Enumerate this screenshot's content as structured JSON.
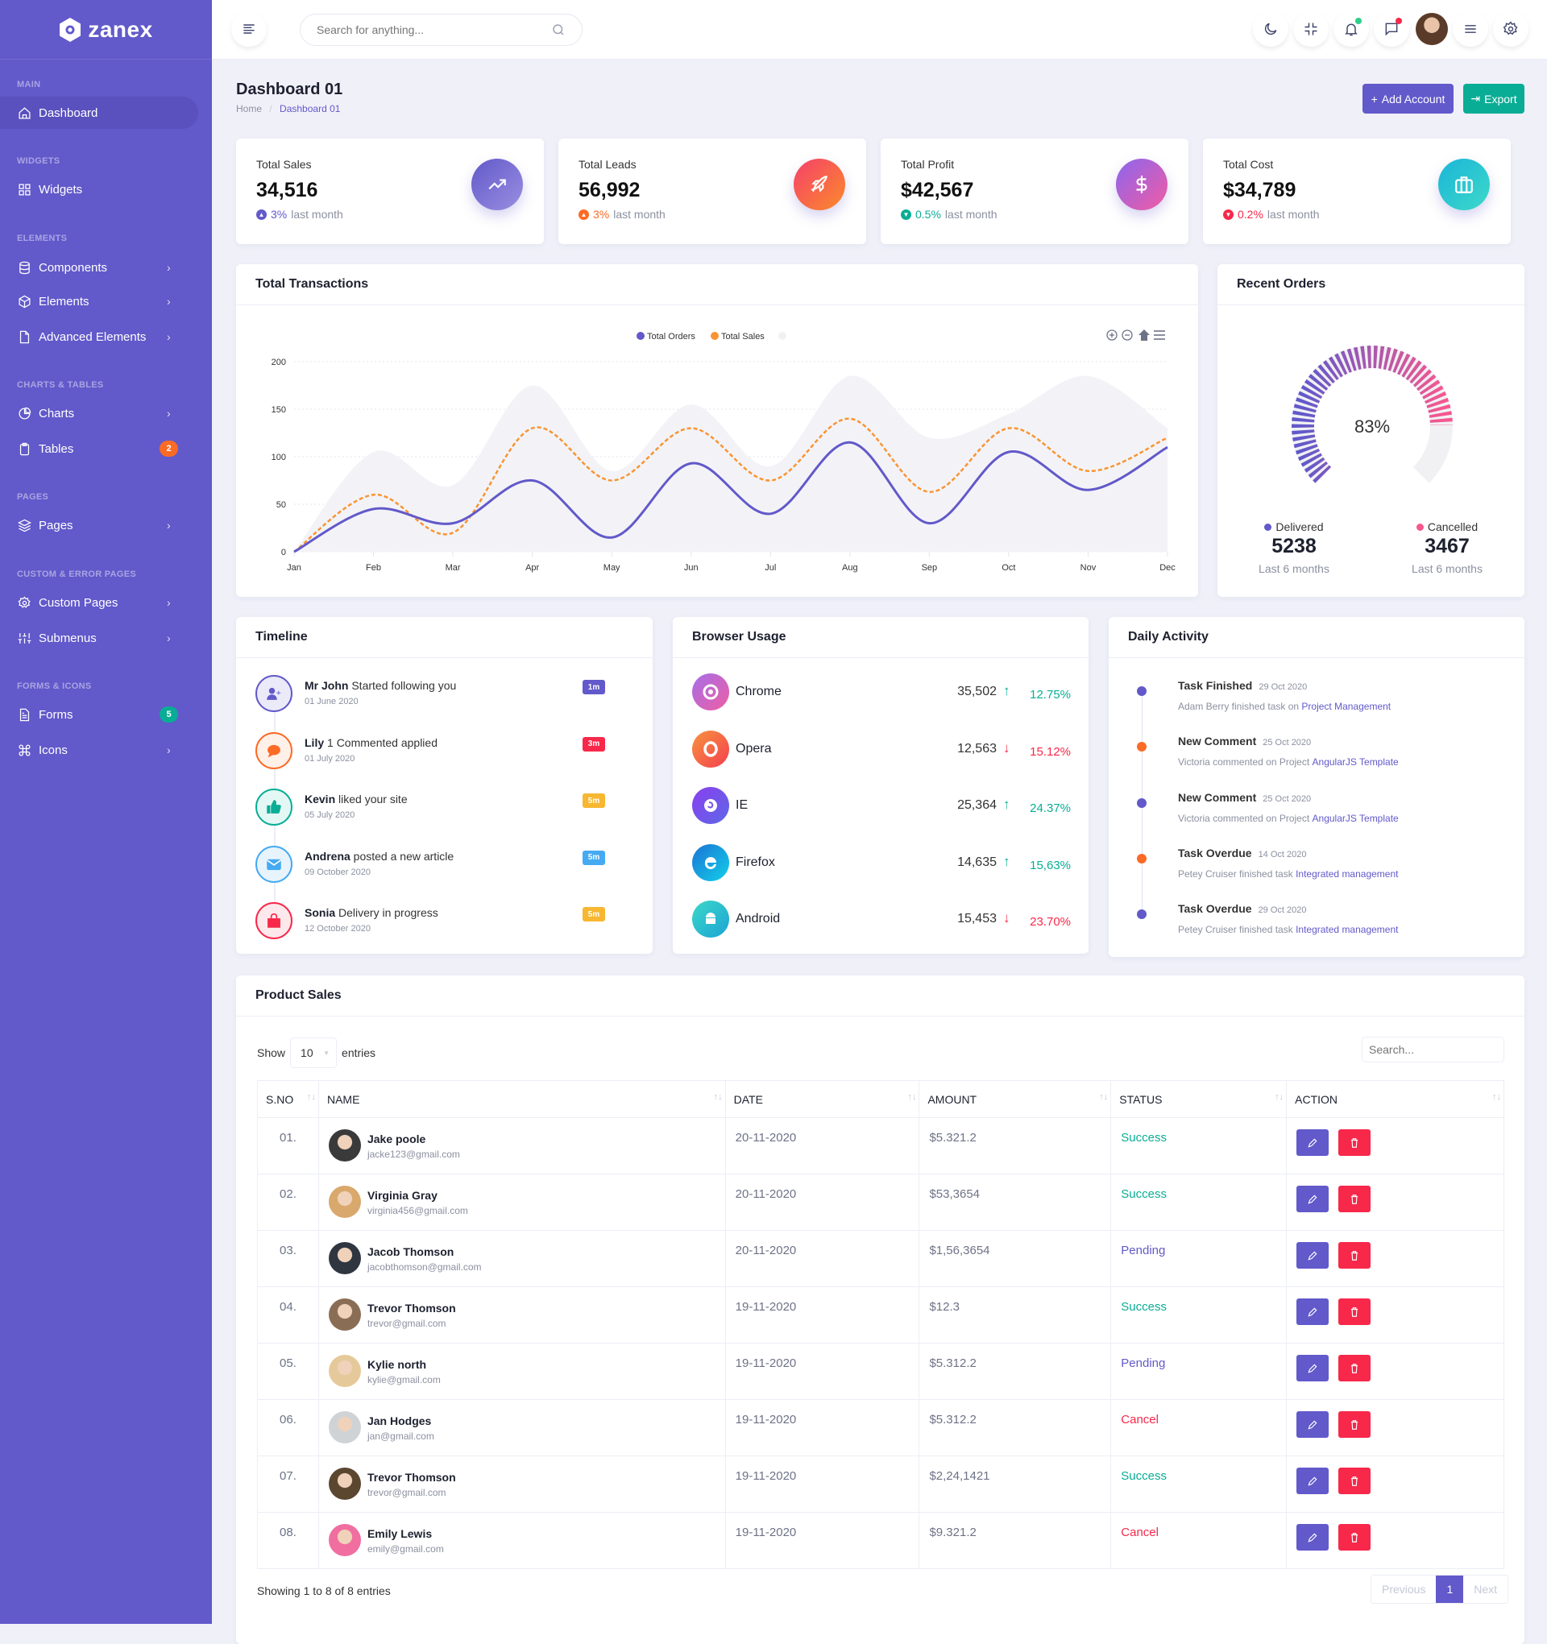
{
  "brand": {
    "name": "zanex"
  },
  "sidebar": {
    "sections": [
      {
        "label": "MAIN",
        "items": [
          {
            "label": "Dashboard",
            "icon": "home-icon",
            "active": true
          }
        ]
      },
      {
        "label": "WIDGETS",
        "items": [
          {
            "label": "Widgets",
            "icon": "grid-icon"
          }
        ]
      },
      {
        "label": "ELEMENTS",
        "items": [
          {
            "label": "Components",
            "icon": "database-icon",
            "chevron": true
          },
          {
            "label": "Elements",
            "icon": "box-icon",
            "chevron": true
          },
          {
            "label": "Advanced Elements",
            "icon": "file-icon",
            "chevron": true
          }
        ]
      },
      {
        "label": "CHARTS & TABLES",
        "items": [
          {
            "label": "Charts",
            "icon": "pie-chart-icon",
            "chevron": true
          },
          {
            "label": "Tables",
            "icon": "clipboard-icon",
            "badge": "2",
            "badge_color": "#fb6b25"
          }
        ]
      },
      {
        "label": "PAGES",
        "items": [
          {
            "label": "Pages",
            "icon": "layers-icon",
            "chevron": true
          }
        ]
      },
      {
        "label": "CUSTOM & ERROR PAGES",
        "items": [
          {
            "label": "Custom Pages",
            "icon": "settings-icon",
            "chevron": true
          },
          {
            "label": "Submenus",
            "icon": "sliders-icon",
            "chevron": true
          }
        ]
      },
      {
        "label": "FORMS & ICONS",
        "items": [
          {
            "label": "Forms",
            "icon": "file-text-icon",
            "badge": "5",
            "badge_color": "#09ad95"
          },
          {
            "label": "Icons",
            "icon": "command-icon",
            "chevron": true
          }
        ]
      }
    ]
  },
  "header": {
    "search_placeholder": "Search for anything..."
  },
  "page": {
    "title": "Dashboard 01",
    "breadcrumb": {
      "home": "Home",
      "current": "Dashboard 01"
    },
    "add_account": "Add Account",
    "export": "Export"
  },
  "colors": {
    "primary": "#6259ca",
    "secondary": "#09ad95",
    "orange": "#fb6b25",
    "danger": "#f7284a",
    "warning": "#f7b731",
    "info": "#45aaf2"
  },
  "stats": [
    {
      "title": "Total Sales",
      "value": "34,516",
      "change": "3%",
      "suffix": "last month",
      "color": "#6259ca",
      "icon": "trending-up-icon",
      "dir": "up"
    },
    {
      "title": "Total Leads",
      "value": "56,992",
      "change": "3%",
      "suffix": "last month",
      "color": "#fb6b25",
      "icon": "rocket-icon",
      "dir": "up"
    },
    {
      "title": "Total Profit",
      "value": "$42,567",
      "change": "0.5%",
      "suffix": "last month",
      "color": "#09ad95",
      "icon": "dollar-icon",
      "dir": "down"
    },
    {
      "title": "Total Cost",
      "value": "$34,789",
      "change": "0.2%",
      "suffix": "last month",
      "color": "#f7284a",
      "icon": "briefcase-icon",
      "dir": "down"
    }
  ],
  "transactions": {
    "title": "Total Transactions"
  },
  "recent_orders": {
    "title": "Recent Orders",
    "delivered_label": "Delivered",
    "delivered": "5238",
    "cancelled_label": "Cancelled",
    "cancelled": "3467",
    "period": "Last 6 months"
  },
  "chart_data": [
    {
      "type": "line",
      "title": "Total Transactions",
      "categories": [
        "Jan",
        "Feb",
        "Mar",
        "Apr",
        "May",
        "Jun",
        "Jul",
        "Aug",
        "Sep",
        "Oct",
        "Nov",
        "Dec"
      ],
      "series": [
        {
          "name": "Total Orders",
          "color": "#6259ca",
          "style": "solid",
          "values": [
            0,
            45,
            30,
            75,
            15,
            93,
            40,
            115,
            30,
            105,
            65,
            110
          ]
        },
        {
          "name": "Total Sales",
          "color": "#f99433",
          "style": "dashed",
          "values": [
            0,
            60,
            20,
            130,
            75,
            130,
            75,
            140,
            63,
            130,
            85,
            120
          ]
        },
        {
          "name": "",
          "color": "#f3f3f7",
          "style": "area",
          "values": [
            0,
            105,
            70,
            175,
            85,
            155,
            90,
            185,
            120,
            145,
            185,
            130
          ]
        }
      ],
      "yticks": [
        "0",
        "50",
        "100",
        "150",
        "200"
      ],
      "ylim": [
        0,
        200
      ],
      "grid": true,
      "legend": "top-center"
    },
    {
      "type": "radialBar",
      "title": "Recent Orders",
      "value": 83,
      "label": "83%",
      "colors": [
        "#6259ca",
        "#f5578f"
      ]
    }
  ],
  "timeline": {
    "title": "Timeline",
    "items": [
      {
        "name": "Mr John",
        "text": " Started following you",
        "date": "01 June 2020",
        "badge": "1m",
        "color": "#6259ca",
        "bg": "#ebeaf9",
        "badge_color": "#6259ca",
        "icon": "user-plus-icon"
      },
      {
        "name": "Lily",
        "text": " 1 Commented applied",
        "date": "01 July 2020",
        "badge": "3m",
        "color": "#fb6b25",
        "bg": "#fff0e8",
        "badge_color": "#f7284a",
        "icon": "comment-icon"
      },
      {
        "name": "Kevin",
        "text": " liked your site",
        "date": "05 July 2020",
        "badge": "5m",
        "color": "#09ad95",
        "bg": "#e3f7f4",
        "badge_color": "#f7b731",
        "icon": "thumbs-up-icon"
      },
      {
        "name": "Andrena",
        "text": " posted a new article",
        "date": "09 October 2020",
        "badge": "5m",
        "color": "#45aaf2",
        "bg": "#e8f4fd",
        "badge_color": "#45aaf2",
        "icon": "envelope-icon"
      },
      {
        "name": "Sonia",
        "text": " Delivery in progress",
        "date": "12 October 2020",
        "badge": "5m",
        "color": "#f7284a",
        "bg": "#fde8ec",
        "badge_color": "#f7b731",
        "icon": "shopping-bag-icon"
      }
    ]
  },
  "browser": {
    "title": "Browser Usage",
    "items": [
      {
        "name": "Chrome",
        "value": "35,502",
        "pct": "12.75%",
        "dir": "up",
        "grad": [
          "#a66ee8",
          "#ee5ea4"
        ],
        "icon": "chrome-icon"
      },
      {
        "name": "Opera",
        "value": "12,563",
        "pct": "15.12%",
        "dir": "down",
        "grad": [
          "#f7933f",
          "#f43f4e"
        ],
        "icon": "opera-icon"
      },
      {
        "name": "IE",
        "value": "25,364",
        "pct": "24.37%",
        "dir": "up",
        "grad": [
          "#8a3ff0",
          "#5d68e6"
        ],
        "icon": "firefox-icon"
      },
      {
        "name": "Firefox",
        "value": "14,635",
        "pct": "15,63%",
        "dir": "up",
        "grad": [
          "#1b73d4",
          "#12d0ea"
        ],
        "icon": "edge-icon"
      },
      {
        "name": "Android",
        "value": "15,453",
        "pct": "23.70%",
        "dir": "down",
        "grad": [
          "#3ad8c7",
          "#1ea3d6"
        ],
        "icon": "android-icon"
      }
    ]
  },
  "activity": {
    "title": "Daily Activity",
    "items": [
      {
        "title": "Task Finished",
        "date": "29 Oct 2020",
        "text": "Adam Berry finished task on ",
        "link": "Project Management",
        "color": "#6259ca"
      },
      {
        "title": "New Comment",
        "date": "25 Oct 2020",
        "text": "Victoria commented on Project ",
        "link": "AngularJS Template",
        "color": "#fb6b25"
      },
      {
        "title": "New Comment",
        "date": "25 Oct 2020",
        "text": "Victoria commented on Project ",
        "link": "AngularJS Template",
        "color": "#6259ca"
      },
      {
        "title": "Task Overdue",
        "date": "14 Oct 2020",
        "text": "Petey Cruiser finished task ",
        "link": "Integrated management",
        "color": "#fb6b25"
      },
      {
        "title": "Task Overdue",
        "date": "29 Oct 2020",
        "text": "Petey Cruiser finished task ",
        "link": "Integrated management",
        "color": "#6259ca"
      }
    ]
  },
  "product_sales": {
    "title": "Product Sales",
    "show": "Show",
    "entries_value": "10",
    "entries": "entries",
    "search_placeholder": "Search...",
    "columns": [
      "S.NO",
      "NAME",
      "DATE",
      "AMOUNT",
      "STATUS",
      "ACTION"
    ],
    "rows": [
      {
        "sno": "01.",
        "name": "Jake poole",
        "email": "jacke123@gmail.com",
        "date": "20-11-2020",
        "amount": "$5.321.2",
        "status": "Success"
      },
      {
        "sno": "02.",
        "name": "Virginia Gray",
        "email": "virginia456@gmail.com",
        "date": "20-11-2020",
        "amount": "$53,3654",
        "status": "Success"
      },
      {
        "sno": "03.",
        "name": "Jacob Thomson",
        "email": "jacobthomson@gmail.com",
        "date": "20-11-2020",
        "amount": "$1,56,3654",
        "status": "Pending"
      },
      {
        "sno": "04.",
        "name": "Trevor Thomson",
        "email": "trevor@gmail.com",
        "date": "19-11-2020",
        "amount": "$12.3",
        "status": "Success"
      },
      {
        "sno": "05.",
        "name": "Kylie north",
        "email": "kylie@gmail.com",
        "date": "19-11-2020",
        "amount": "$5.312.2",
        "status": "Pending"
      },
      {
        "sno": "06.",
        "name": "Jan Hodges",
        "email": "jan@gmail.com",
        "date": "19-11-2020",
        "amount": "$5.312.2",
        "status": "Cancel"
      },
      {
        "sno": "07.",
        "name": "Trevor Thomson",
        "email": "trevor@gmail.com",
        "date": "19-11-2020",
        "amount": "$2,24,1421",
        "status": "Success"
      },
      {
        "sno": "08.",
        "name": "Emily Lewis",
        "email": "emily@gmail.com",
        "date": "19-11-2020",
        "amount": "$9.321.2",
        "status": "Cancel"
      }
    ],
    "status_colors": {
      "Success": "#09ad95",
      "Pending": "#6259ca",
      "Cancel": "#f7284a"
    },
    "footer": "Showing 1 to 8 of 8 entries",
    "pagination": {
      "previous": "Previous",
      "current": "1",
      "next": "Next"
    }
  }
}
